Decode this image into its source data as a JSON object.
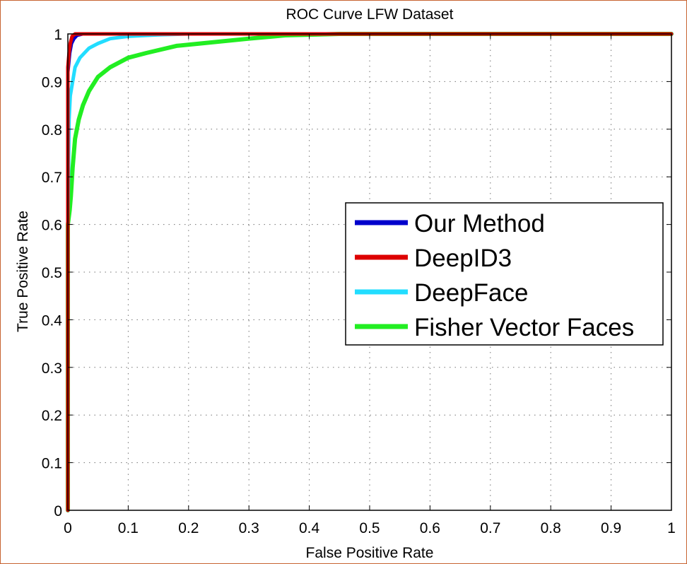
{
  "chart_data": {
    "type": "line",
    "title": "ROC Curve LFW Dataset",
    "xlabel": "False Positive Rate",
    "ylabel": "True Positive Rate",
    "xlim": [
      0,
      1
    ],
    "ylim": [
      0,
      1
    ],
    "grid": true,
    "legend_position": "center-right",
    "x_ticks": [
      "0",
      "0.1",
      "0.2",
      "0.3",
      "0.4",
      "0.5",
      "0.6",
      "0.7",
      "0.8",
      "0.9",
      "1"
    ],
    "y_ticks": [
      "0",
      "0.1",
      "0.2",
      "0.3",
      "0.4",
      "0.5",
      "0.6",
      "0.7",
      "0.8",
      "0.9",
      "1"
    ],
    "series": [
      {
        "name": "Our Method",
        "color": "#0000cc",
        "points": [
          [
            0,
            0
          ],
          [
            0,
            0.6
          ],
          [
            0,
            0.92
          ],
          [
            0.003,
            0.96
          ],
          [
            0.006,
            0.98
          ],
          [
            0.01,
            0.99
          ],
          [
            0.015,
            0.997
          ],
          [
            0.025,
            1
          ],
          [
            0.1,
            1
          ],
          [
            0.5,
            1
          ],
          [
            1,
            1
          ]
        ]
      },
      {
        "name": "DeepID3",
        "color": "#dd0000",
        "points": [
          [
            0,
            0
          ],
          [
            0,
            0.6
          ],
          [
            0,
            0.93
          ],
          [
            0.002,
            0.96
          ],
          [
            0.004,
            0.98
          ],
          [
            0.007,
            0.995
          ],
          [
            0.012,
            1
          ],
          [
            0.06,
            1
          ],
          [
            0.5,
            1
          ],
          [
            1,
            1
          ]
        ]
      },
      {
        "name": "DeepFace",
        "color": "#22ddff",
        "points": [
          [
            0,
            0
          ],
          [
            0,
            0.6
          ],
          [
            0.002,
            0.82
          ],
          [
            0.004,
            0.87
          ],
          [
            0.008,
            0.9
          ],
          [
            0.012,
            0.93
          ],
          [
            0.02,
            0.95
          ],
          [
            0.035,
            0.97
          ],
          [
            0.05,
            0.98
          ],
          [
            0.07,
            0.99
          ],
          [
            0.1,
            0.995
          ],
          [
            0.15,
            0.998
          ],
          [
            0.2,
            1
          ],
          [
            0.5,
            1
          ],
          [
            1,
            1
          ]
        ]
      },
      {
        "name": "Fisher Vector Faces",
        "color": "#22ee22",
        "points": [
          [
            0,
            0
          ],
          [
            0,
            0.6
          ],
          [
            0.003,
            0.63
          ],
          [
            0.005,
            0.66
          ],
          [
            0.008,
            0.72
          ],
          [
            0.012,
            0.78
          ],
          [
            0.018,
            0.82
          ],
          [
            0.025,
            0.85
          ],
          [
            0.035,
            0.88
          ],
          [
            0.05,
            0.91
          ],
          [
            0.07,
            0.93
          ],
          [
            0.1,
            0.95
          ],
          [
            0.13,
            0.96
          ],
          [
            0.18,
            0.975
          ],
          [
            0.22,
            0.98
          ],
          [
            0.3,
            0.99
          ],
          [
            0.36,
            0.997
          ],
          [
            0.45,
            1
          ],
          [
            0.6,
            1
          ],
          [
            1,
            1
          ]
        ]
      }
    ]
  }
}
